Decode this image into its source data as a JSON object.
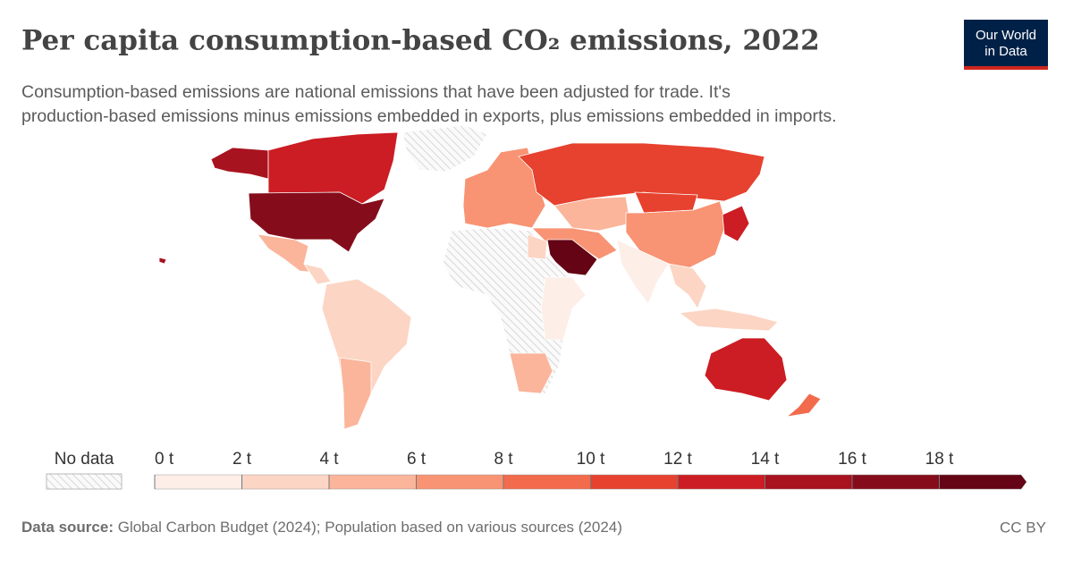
{
  "header": {
    "title": "Per capita consumption-based CO₂ emissions, 2022",
    "subtitle": [
      "Consumption-based emissions are national emissions that have been adjusted for trade. It's",
      "production-based emissions minus emissions embedded in exports, plus emissions embedded in imports."
    ],
    "logo": [
      "Our World",
      "in Data"
    ]
  },
  "legend": {
    "no_data": "No data",
    "ticks": [
      {
        "value": 0,
        "label": "0 t"
      },
      {
        "value": 2,
        "label": "2 t"
      },
      {
        "value": 4,
        "label": "4 t"
      },
      {
        "value": 6,
        "label": "6 t"
      },
      {
        "value": 8,
        "label": "8 t"
      },
      {
        "value": 10,
        "label": "10 t"
      },
      {
        "value": 12,
        "label": "12 t"
      },
      {
        "value": 14,
        "label": "14 t"
      },
      {
        "value": 16,
        "label": "16 t"
      },
      {
        "value": 18,
        "label": "18 t"
      }
    ],
    "colors": [
      "#fdeee8",
      "#fcd5c4",
      "#fbb59b",
      "#f89373",
      "#f26b4c",
      "#e6422f",
      "#cb1d23",
      "#a7131f",
      "#850d1b",
      "#640414"
    ]
  },
  "footer": {
    "source_label": "Data source:",
    "source": "Global Carbon Budget (2024); Population based on various sources (2024)",
    "license": "CC BY"
  }
}
